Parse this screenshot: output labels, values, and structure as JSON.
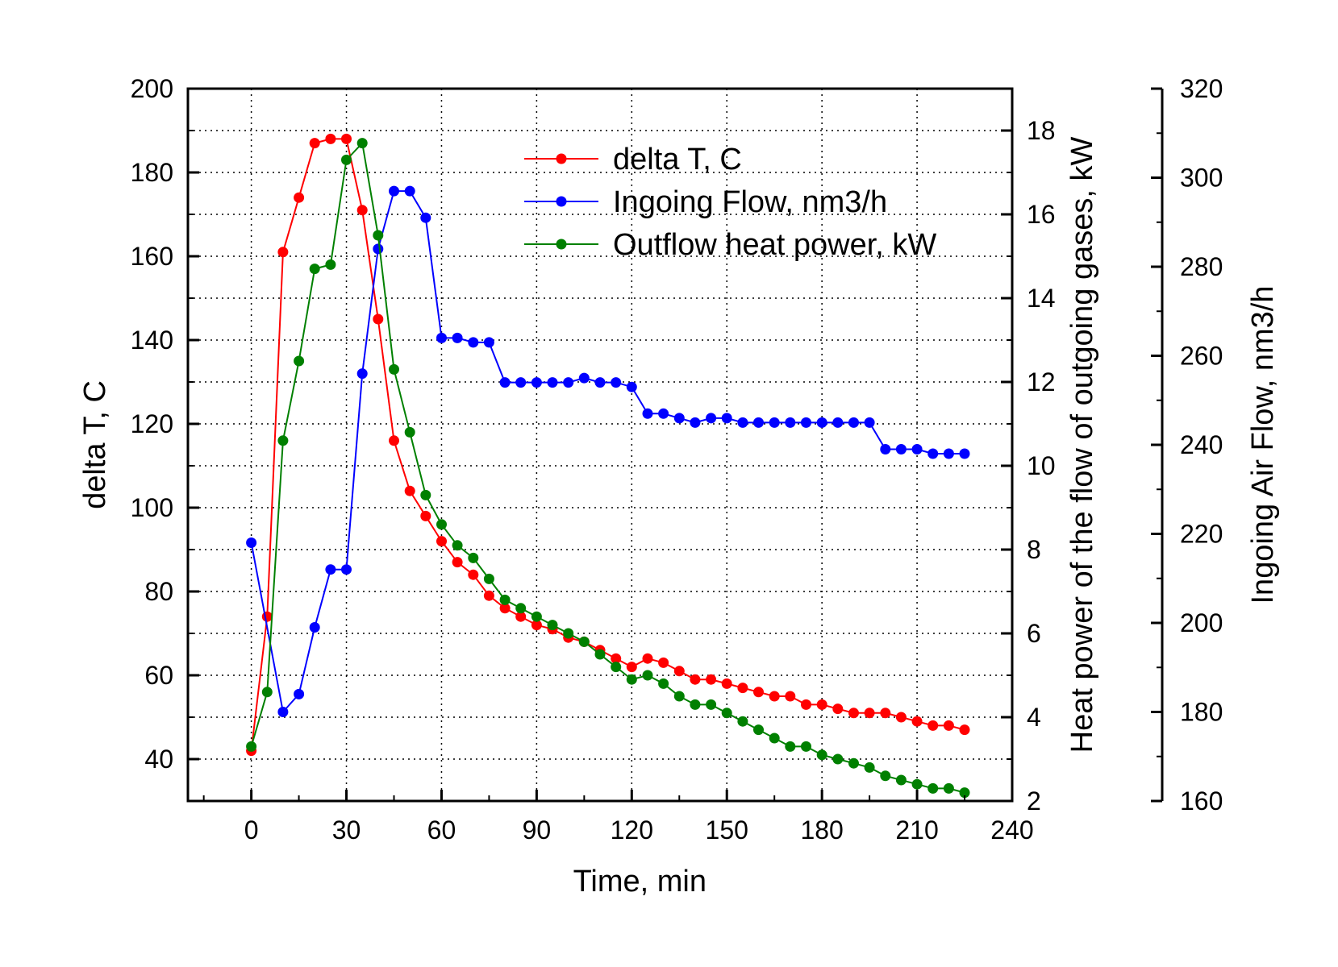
{
  "chart_data": {
    "type": "line",
    "xlabel": "Time, min",
    "x_ticks": [
      0,
      30,
      60,
      90,
      120,
      150,
      180,
      210,
      240
    ],
    "xlim": [
      -20,
      240
    ],
    "axes": {
      "left": {
        "label": "delta T, C",
        "ylim": [
          30,
          200
        ],
        "ticks": [
          40,
          60,
          80,
          100,
          120,
          140,
          160,
          180,
          200
        ]
      },
      "right1": {
        "label": "Heat power of the flow of outgoing gases, kW",
        "ylim": [
          2,
          19
        ],
        "ticks": [
          2,
          4,
          6,
          8,
          10,
          12,
          14,
          16,
          18
        ]
      },
      "right2": {
        "label": "Ingoing Air Flow, nm3/h",
        "ylim": [
          160,
          320
        ],
        "ticks": [
          160,
          180,
          200,
          220,
          240,
          260,
          280,
          300,
          320
        ]
      }
    },
    "grid": true,
    "legend_position": "top-right",
    "x": [
      0,
      5,
      10,
      15,
      20,
      25,
      30,
      35,
      40,
      45,
      50,
      55,
      60,
      65,
      70,
      75,
      80,
      85,
      90,
      95,
      100,
      105,
      110,
      115,
      120,
      125,
      130,
      135,
      140,
      145,
      150,
      155,
      160,
      165,
      170,
      175,
      180,
      185,
      190,
      195,
      200,
      205,
      210,
      215,
      220,
      225
    ],
    "series": [
      {
        "name": "delta T, C",
        "axis": "left",
        "color": "#ff0000",
        "values": [
          42,
          74,
          161,
          174,
          187,
          188,
          188,
          171,
          145,
          116,
          104,
          98,
          92,
          87,
          84,
          79,
          76,
          74,
          72,
          71,
          69,
          68,
          66,
          64,
          62,
          64,
          63,
          61,
          59,
          59,
          58,
          57,
          56,
          55,
          55,
          53,
          53,
          52,
          51,
          51,
          51,
          50,
          49,
          48,
          48,
          47
        ]
      },
      {
        "name": "Ingoing Flow, nm3/h",
        "axis": "right2",
        "color": "#0000ff",
        "values": [
          218,
          null,
          180,
          184,
          199,
          212,
          212,
          256,
          284,
          297,
          297,
          291,
          264,
          264,
          263,
          263,
          254,
          254,
          254,
          254,
          254,
          255,
          254,
          254,
          253,
          247,
          247,
          246,
          245,
          246,
          246,
          245,
          245,
          245,
          245,
          245,
          245,
          245,
          245,
          245,
          239,
          239,
          239,
          238,
          238,
          238
        ]
      },
      {
        "name": "Outflow heat power,  kW",
        "axis": "right1",
        "color": "#008000",
        "values": [
          3.3,
          4.6,
          10.6,
          12.5,
          14.7,
          14.8,
          17.3,
          17.7,
          15.5,
          12.3,
          10.8,
          9.3,
          8.6,
          8.1,
          7.8,
          7.3,
          6.8,
          6.6,
          6.4,
          6.2,
          6.0,
          5.8,
          5.5,
          5.2,
          4.9,
          5.0,
          4.8,
          4.5,
          4.3,
          4.3,
          4.1,
          3.9,
          3.7,
          3.5,
          3.3,
          3.3,
          3.1,
          3.0,
          2.9,
          2.8,
          2.6,
          2.5,
          2.4,
          2.3,
          2.3,
          2.2
        ]
      }
    ]
  }
}
